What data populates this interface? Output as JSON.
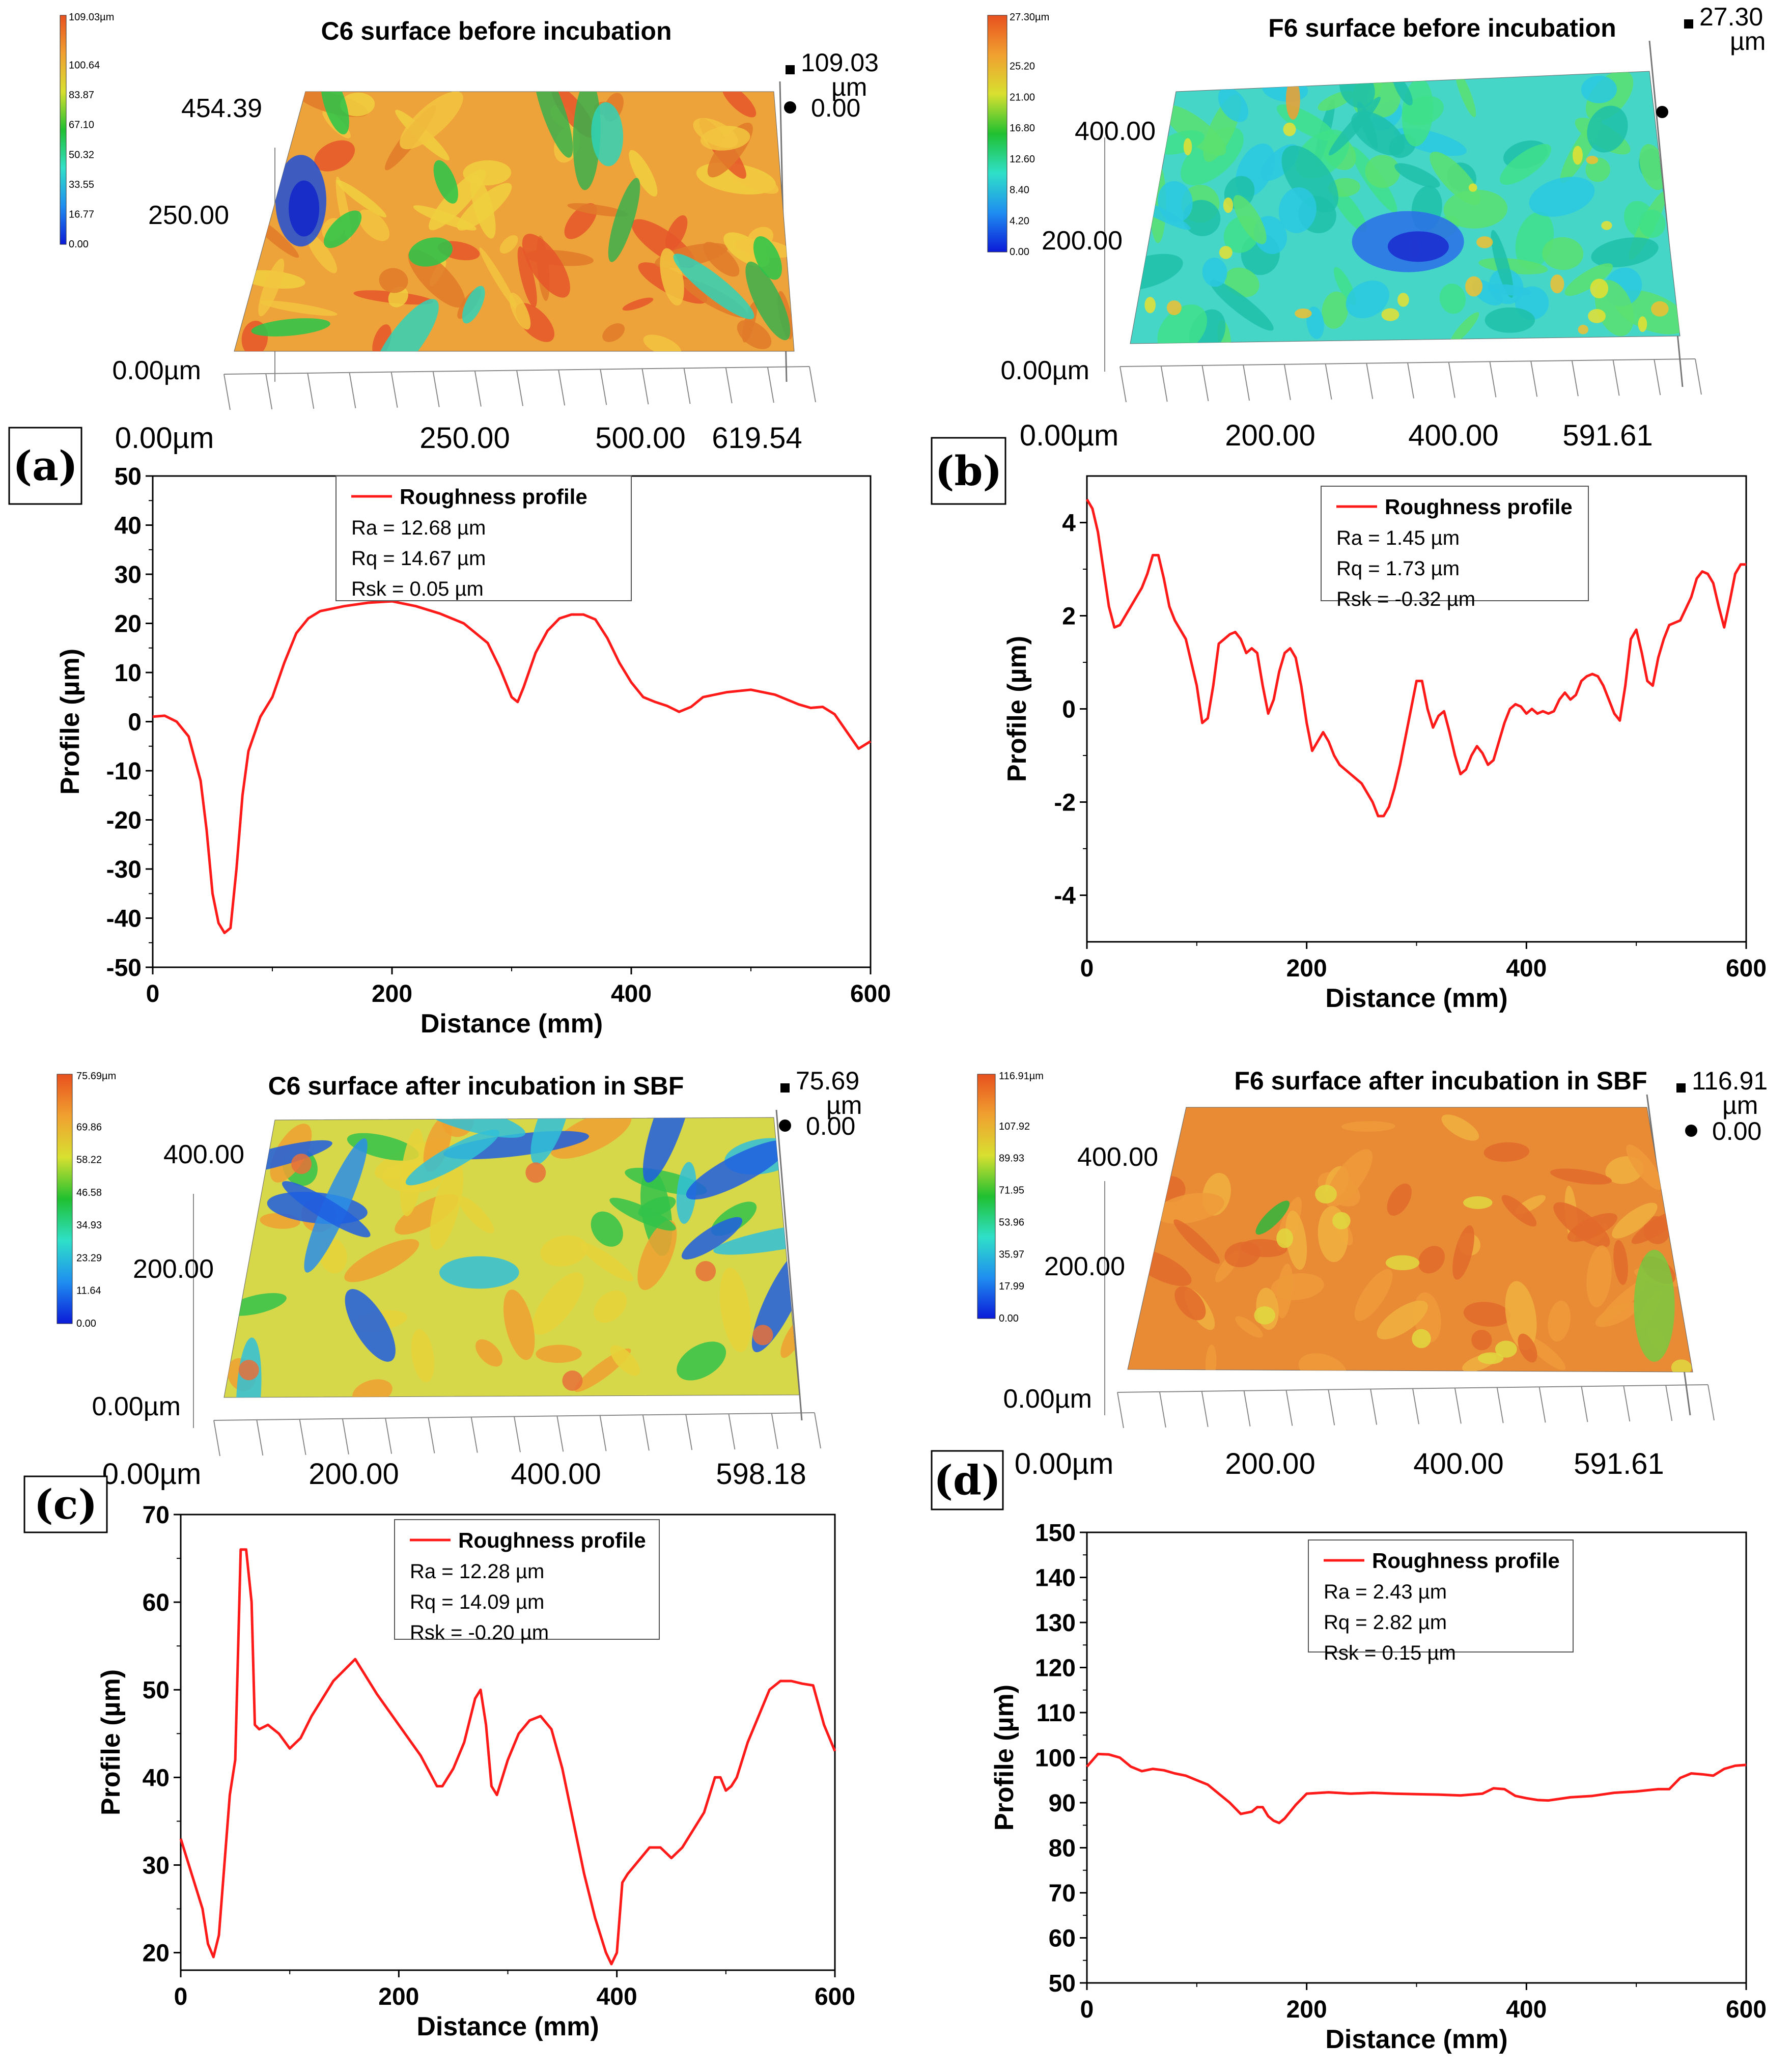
{
  "colors": {
    "line": "#ff1a1a",
    "axis": "#000000",
    "cmap": [
      "#0b1bd8",
      "#1f8ef0",
      "#2fe0c8",
      "#20c030",
      "#d8e030",
      "#f0a030",
      "#e8501e"
    ]
  },
  "panels": [
    {
      "id": "a",
      "letter": "(a)",
      "surface": {
        "title": "C6 surface before incubation",
        "zmax_label": "109.03",
        "zmax_unit": "µm",
        "zmin_label": "0.00",
        "y_ticks": [
          "454.39",
          "250.00",
          "0.00µm"
        ],
        "x_ticks": [
          "0.00µm",
          "250.00",
          "500.00",
          "619.54"
        ],
        "colorbar_labels": [
          "109.03µm",
          "100.64",
          "83.87",
          "67.10",
          "50.32",
          "33.55",
          "16.77",
          "0.00"
        ],
        "texture": "patchy"
      },
      "legend": {
        "series_label": "Roughness profile",
        "stats": [
          "Ra = 12.68 µm",
          "Rq = 14.67 µm",
          "Rsk = 0.05 µm"
        ]
      }
    },
    {
      "id": "b",
      "letter": "(b)",
      "surface": {
        "title": "F6 surface before incubation",
        "zmax_label": "27.30",
        "zmax_unit": "µm",
        "zmin_label": "",
        "y_ticks": [
          "400.00",
          "200.00",
          "0.00µm"
        ],
        "x_ticks": [
          "0.00µm",
          "200.00",
          "400.00",
          "591.61"
        ],
        "colorbar_labels": [
          "27.30µm",
          "25.20",
          "21.00",
          "16.80",
          "12.60",
          "8.40",
          "4.20",
          "0.00"
        ],
        "texture": "bumpy"
      },
      "legend": {
        "series_label": "Roughness profile",
        "stats": [
          "Ra = 1.45 µm",
          "Rq = 1.73 µm",
          "Rsk = -0.32 µm"
        ]
      }
    },
    {
      "id": "c",
      "letter": "(c)",
      "surface": {
        "title": "C6 surface after incubation in SBF",
        "zmax_label": "75.69",
        "zmax_unit": "µm",
        "zmin_label": "0.00",
        "y_ticks": [
          "400.00",
          "200.00",
          "0.00µm"
        ],
        "x_ticks": [
          "0.00µm",
          "200.00",
          "400.00",
          "598.18"
        ],
        "colorbar_labels": [
          "75.69µm",
          "69.86",
          "58.22",
          "46.58",
          "34.93",
          "23.29",
          "11.64",
          "0.00"
        ],
        "texture": "wormy"
      },
      "legend": {
        "series_label": "Roughness profile",
        "stats": [
          "Ra = 12.28 µm",
          "Rq = 14.09 µm",
          "Rsk = -0.20 µm"
        ]
      }
    },
    {
      "id": "d",
      "letter": "(d)",
      "surface": {
        "title": "F6 surface after incubation in SBF",
        "zmax_label": "116.91",
        "zmax_unit": "µm",
        "zmin_label": "0.00",
        "y_ticks": [
          "400.00",
          "200.00",
          "0.00µm"
        ],
        "x_ticks": [
          "0.00µm",
          "200.00",
          "400.00",
          "591.61"
        ],
        "colorbar_labels": [
          "116.91µm",
          "107.92",
          "89.93",
          "71.95",
          "53.96",
          "35.97",
          "17.99",
          "0.00"
        ],
        "texture": "flat"
      },
      "legend": {
        "series_label": "Roughness profile",
        "stats": [
          "Ra = 2.43 µm",
          "Rq = 2.82 µm",
          "Rsk = 0.15 µm"
        ]
      }
    }
  ],
  "chart_data": [
    {
      "panel": "a",
      "type": "line",
      "title": "",
      "xlabel": "Distance (mm)",
      "ylabel": "Profile (µm)",
      "xlim": [
        0,
        600
      ],
      "ylim": [
        -50,
        50
      ],
      "xticks": [
        0,
        200,
        400,
        600
      ],
      "yticks": [
        -50,
        -40,
        -30,
        -20,
        -10,
        0,
        10,
        20,
        30,
        40,
        50
      ],
      "series": [
        {
          "name": "Roughness profile",
          "x": [
            0,
            10,
            20,
            30,
            40,
            45,
            50,
            55,
            60,
            65,
            70,
            75,
            80,
            90,
            100,
            110,
            120,
            130,
            140,
            150,
            160,
            180,
            200,
            210,
            220,
            240,
            260,
            280,
            290,
            300,
            305,
            310,
            320,
            330,
            340,
            350,
            360,
            370,
            380,
            390,
            400,
            410,
            420,
            430,
            440,
            450,
            460,
            480,
            500,
            520,
            540,
            550,
            560,
            570,
            580,
            590,
            600
          ],
          "y": [
            1,
            1.2,
            0,
            -3,
            -12,
            -22,
            -35,
            -41,
            -43,
            -42,
            -30,
            -15,
            -6,
            1,
            5,
            12,
            18,
            21,
            22.5,
            23,
            23.5,
            24.2,
            24.5,
            24,
            23.5,
            22,
            20,
            16,
            11,
            5,
            4,
            7,
            14,
            18.5,
            21,
            21.8,
            21.8,
            20.8,
            17,
            12,
            8,
            5,
            4,
            3.2,
            2,
            3,
            5,
            6,
            6.5,
            5.5,
            3.5,
            2.8,
            3,
            1.5,
            -2,
            -5.5,
            -4
          ]
        }
      ]
    },
    {
      "panel": "b",
      "type": "line",
      "title": "",
      "xlabel": "Distance (mm)",
      "ylabel": "Profile (µm)",
      "xlim": [
        0,
        600
      ],
      "ylim": [
        -5,
        5
      ],
      "xticks": [
        0,
        200,
        400,
        600
      ],
      "yticks": [
        -4,
        -2,
        0,
        2,
        4
      ],
      "series": [
        {
          "name": "Roughness profile",
          "x": [
            0,
            5,
            10,
            15,
            20,
            25,
            30,
            35,
            40,
            45,
            50,
            55,
            60,
            65,
            70,
            75,
            80,
            90,
            100,
            105,
            110,
            115,
            120,
            125,
            130,
            135,
            140,
            145,
            150,
            155,
            160,
            165,
            170,
            175,
            180,
            185,
            190,
            195,
            200,
            205,
            210,
            215,
            220,
            225,
            230,
            235,
            240,
            250,
            260,
            265,
            270,
            275,
            280,
            285,
            290,
            295,
            300,
            305,
            310,
            315,
            320,
            325,
            330,
            335,
            340,
            345,
            350,
            355,
            360,
            365,
            370,
            375,
            380,
            385,
            390,
            395,
            400,
            405,
            410,
            415,
            420,
            425,
            430,
            435,
            440,
            445,
            450,
            455,
            460,
            465,
            470,
            475,
            480,
            485,
            490,
            495,
            500,
            505,
            510,
            515,
            520,
            525,
            530,
            540,
            550,
            555,
            560,
            565,
            570,
            575,
            580,
            585,
            590,
            595,
            600
          ],
          "y": [
            4.5,
            4.3,
            3.8,
            3.0,
            2.2,
            1.75,
            1.8,
            2.0,
            2.2,
            2.4,
            2.6,
            2.9,
            3.3,
            3.3,
            2.8,
            2.2,
            1.9,
            1.5,
            0.5,
            -0.3,
            -0.2,
            0.5,
            1.4,
            1.5,
            1.6,
            1.65,
            1.5,
            1.2,
            1.3,
            1.2,
            0.5,
            -0.1,
            0.2,
            0.8,
            1.2,
            1.3,
            1.1,
            0.5,
            -0.3,
            -0.9,
            -0.7,
            -0.5,
            -0.7,
            -1.0,
            -1.2,
            -1.3,
            -1.4,
            -1.6,
            -2.0,
            -2.3,
            -2.3,
            -2.1,
            -1.7,
            -1.2,
            -0.6,
            0.0,
            0.6,
            0.6,
            0.0,
            -0.4,
            -0.15,
            -0.05,
            -0.5,
            -1.0,
            -1.4,
            -1.3,
            -1.0,
            -0.8,
            -0.95,
            -1.2,
            -1.1,
            -0.7,
            -0.3,
            0.0,
            0.1,
            0.05,
            -0.1,
            0.0,
            -0.1,
            -0.05,
            -0.1,
            -0.05,
            0.2,
            0.35,
            0.2,
            0.3,
            0.6,
            0.7,
            0.75,
            0.7,
            0.5,
            0.2,
            -0.1,
            -0.25,
            0.5,
            1.5,
            1.7,
            1.2,
            0.6,
            0.5,
            1.1,
            1.5,
            1.8,
            1.9,
            2.4,
            2.8,
            2.95,
            2.9,
            2.7,
            2.2,
            1.75,
            2.3,
            2.9,
            3.1,
            3.1
          ]
        }
      ]
    },
    {
      "panel": "c",
      "type": "line",
      "title": "",
      "xlabel": "Distance (mm)",
      "ylabel": "Profile (µm)",
      "xlim": [
        0,
        600
      ],
      "ylim": [
        18,
        70
      ],
      "xticks": [
        0,
        200,
        400,
        600
      ],
      "yticks": [
        20,
        30,
        40,
        50,
        60,
        70
      ],
      "series": [
        {
          "name": "Roughness profile",
          "x": [
            0,
            10,
            20,
            25,
            30,
            35,
            40,
            45,
            50,
            55,
            60,
            65,
            68,
            72,
            80,
            90,
            100,
            110,
            120,
            140,
            160,
            180,
            200,
            220,
            235,
            240,
            250,
            260,
            270,
            275,
            280,
            285,
            290,
            300,
            310,
            320,
            330,
            340,
            350,
            360,
            370,
            380,
            390,
            395,
            400,
            405,
            410,
            420,
            430,
            440,
            450,
            460,
            470,
            480,
            490,
            495,
            500,
            505,
            510,
            520,
            530,
            540,
            550,
            560,
            570,
            580,
            590,
            600
          ],
          "y": [
            33,
            29,
            25,
            21,
            19.5,
            22,
            30,
            38,
            42,
            66,
            66,
            60,
            46,
            45.5,
            46,
            45,
            43.3,
            44.5,
            47,
            51,
            53.5,
            49.5,
            46,
            42.5,
            39,
            39,
            41,
            44,
            49,
            50,
            46,
            39,
            38,
            42,
            45,
            46.5,
            47,
            45.5,
            41,
            35,
            29,
            24,
            20,
            18.7,
            20,
            28,
            29,
            30.5,
            32,
            32,
            30.8,
            32,
            34,
            36,
            40,
            40,
            38.5,
            39,
            40,
            44,
            47,
            50,
            51,
            51,
            50.7,
            50.5,
            46,
            43
          ]
        }
      ]
    },
    {
      "panel": "d",
      "type": "line",
      "title": "",
      "xlabel": "Distance (mm)",
      "ylabel": "Profile (µm)",
      "xlim": [
        0,
        600
      ],
      "ylim": [
        50,
        150
      ],
      "xticks": [
        0,
        200,
        400,
        600
      ],
      "yticks": [
        50,
        60,
        70,
        80,
        90,
        100,
        110,
        120,
        130,
        140,
        150
      ],
      "series": [
        {
          "name": "Roughness profile",
          "x": [
            0,
            10,
            20,
            30,
            40,
            50,
            60,
            70,
            80,
            90,
            100,
            110,
            120,
            130,
            140,
            150,
            155,
            160,
            165,
            170,
            175,
            180,
            190,
            200,
            220,
            240,
            260,
            280,
            300,
            320,
            340,
            360,
            370,
            380,
            390,
            400,
            410,
            420,
            440,
            460,
            480,
            500,
            520,
            530,
            540,
            550,
            560,
            570,
            580,
            590,
            600
          ],
          "y": [
            98,
            100.8,
            100.7,
            100,
            98,
            97,
            97.5,
            97.2,
            96.5,
            96,
            95,
            94,
            92,
            90,
            87.5,
            88,
            89,
            89,
            87,
            86,
            85.5,
            86.5,
            89.5,
            92,
            92.3,
            92,
            92.2,
            92,
            91.9,
            91.8,
            91.6,
            92,
            93.2,
            93,
            91.5,
            91,
            90.6,
            90.5,
            91.2,
            91.5,
            92.2,
            92.5,
            93,
            93,
            95.5,
            96.5,
            96.3,
            96,
            97.5,
            98.2,
            98.4
          ]
        }
      ]
    }
  ]
}
